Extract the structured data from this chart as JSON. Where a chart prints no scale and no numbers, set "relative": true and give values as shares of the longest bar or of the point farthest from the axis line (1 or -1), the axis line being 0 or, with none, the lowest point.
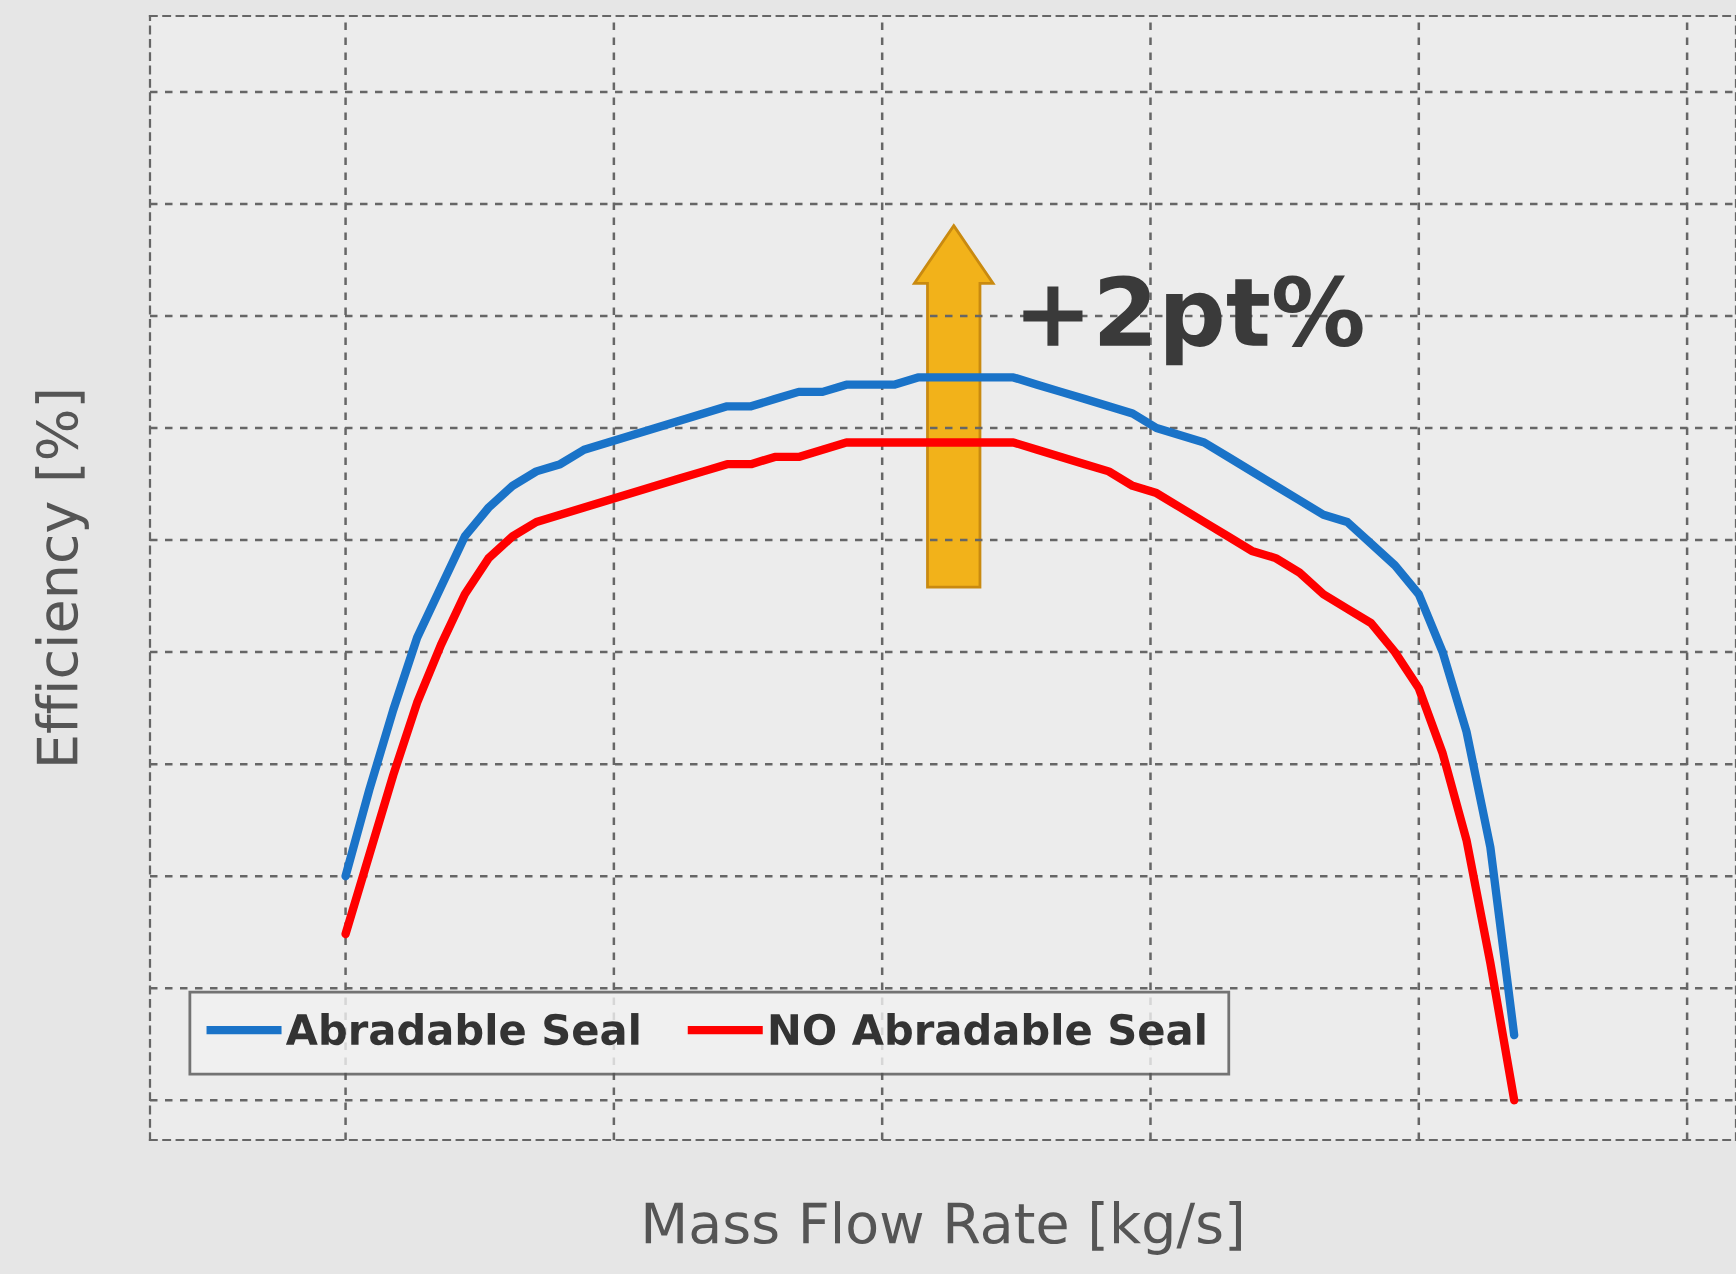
{
  "chart_data": {
    "type": "line",
    "relative": true,
    "xlabel": "Mass Flow Rate [kg/s]",
    "ylabel": "Efficiency [%]",
    "grid": true,
    "legend": "bottom left",
    "tick_labels": false,
    "line_style": "solid",
    "annotations": [
      "+2pt%"
    ],
    "categories": [
      null,
      null,
      null,
      null,
      null,
      null,
      null,
      null,
      null,
      null,
      null,
      null,
      null,
      null,
      null,
      null,
      null,
      null,
      null,
      null,
      null,
      null,
      null,
      null,
      null,
      null,
      null,
      null,
      null,
      null,
      null,
      null,
      null,
      null,
      null,
      null,
      null,
      null,
      null,
      null,
      null,
      null,
      null,
      null,
      null,
      null,
      null,
      null,
      null,
      null
    ],
    "series": [
      {
        "name": "Abradable Seal",
        "color": "#1a73c8",
        "values": [
          0.31,
          0.43,
          0.54,
          0.64,
          0.71,
          0.78,
          0.82,
          0.85,
          0.87,
          0.88,
          0.9,
          0.91,
          0.92,
          0.93,
          0.94,
          0.95,
          0.96,
          0.96,
          0.97,
          0.98,
          0.98,
          0.99,
          0.99,
          0.99,
          1.0,
          1.0,
          1.0,
          1.0,
          1.0,
          0.99,
          0.98,
          0.97,
          0.96,
          0.95,
          0.93,
          0.92,
          0.91,
          0.89,
          0.87,
          0.85,
          0.83,
          0.81,
          0.8,
          0.77,
          0.74,
          0.7,
          0.62,
          0.51,
          0.35,
          0.09
        ]
      },
      {
        "name": "NO Abradable Seal",
        "color": "#ff0000",
        "values": [
          0.23,
          0.34,
          0.45,
          0.55,
          0.63,
          0.7,
          0.75,
          0.78,
          0.8,
          0.81,
          0.82,
          0.83,
          0.84,
          0.85,
          0.86,
          0.87,
          0.88,
          0.88,
          0.89,
          0.89,
          0.9,
          0.91,
          0.91,
          0.91,
          0.91,
          0.91,
          0.91,
          0.91,
          0.91,
          0.9,
          0.89,
          0.88,
          0.87,
          0.85,
          0.84,
          0.82,
          0.8,
          0.78,
          0.76,
          0.75,
          0.73,
          0.7,
          0.68,
          0.66,
          0.62,
          0.57,
          0.48,
          0.36,
          0.19,
          0.0
        ]
      }
    ]
  }
}
